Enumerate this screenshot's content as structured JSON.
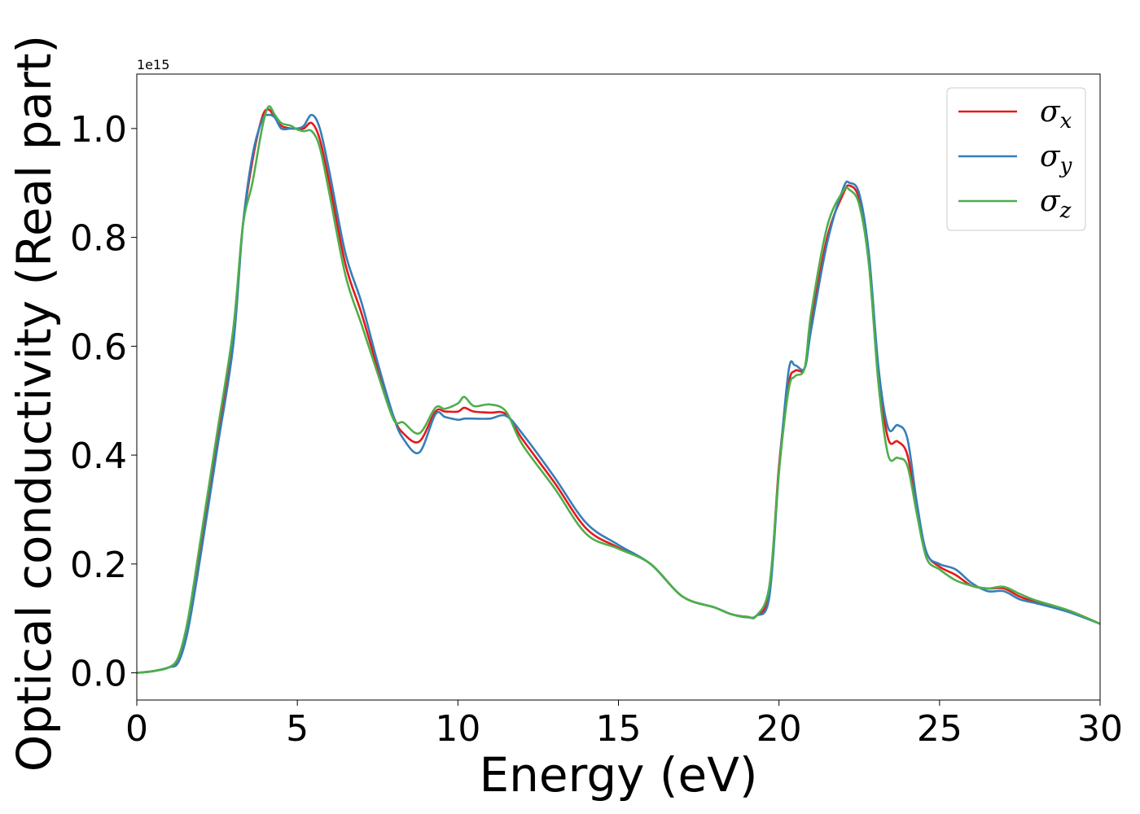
{
  "chart_data": {
    "type": "line",
    "title": "",
    "xlabel": "Energy (eV)",
    "ylabel": "Optical conductivity (Real part)",
    "y_offset_label": "1e15",
    "xlim": [
      0,
      30
    ],
    "ylim": [
      -0.05,
      1.1
    ],
    "x_ticks": [
      0,
      5,
      10,
      15,
      20,
      25,
      30
    ],
    "x_tick_labels": [
      "0",
      "5",
      "10",
      "15",
      "20",
      "25",
      "30"
    ],
    "y_ticks": [
      0.0,
      0.2,
      0.4,
      0.6,
      0.8,
      1.0
    ],
    "y_tick_labels": [
      "0.0",
      "0.2",
      "0.4",
      "0.6",
      "0.8",
      "1.0"
    ],
    "grid": false,
    "legend_position": "top-right",
    "x": [
      0,
      0.5,
      1.0,
      1.3,
      1.6,
      2.0,
      2.5,
      3.0,
      3.3,
      3.6,
      3.9,
      4.1,
      4.3,
      4.5,
      4.8,
      5.0,
      5.2,
      5.45,
      5.7,
      6.0,
      6.5,
      7.0,
      7.5,
      8.0,
      8.3,
      8.8,
      9.3,
      9.6,
      10.0,
      10.2,
      10.5,
      11.0,
      11.5,
      12.0,
      13.0,
      14.0,
      15.0,
      16.0,
      17.0,
      18.0,
      18.5,
      19.0,
      19.3,
      19.7,
      20.0,
      20.3,
      20.5,
      20.8,
      21.0,
      21.5,
      22.0,
      22.2,
      22.5,
      22.8,
      23.1,
      23.4,
      23.7,
      24.0,
      24.3,
      24.6,
      25.0,
      25.5,
      26.0,
      26.5,
      27.0,
      27.5,
      28.0,
      29.0,
      30.0
    ],
    "series": [
      {
        "name": "σx",
        "subscript": "x",
        "color": "#e41a1c",
        "values": [
          0.0,
          0.003,
          0.01,
          0.025,
          0.09,
          0.24,
          0.43,
          0.62,
          0.82,
          0.94,
          1.02,
          1.035,
          1.02,
          1.005,
          1.0,
          1.0,
          1.0,
          1.01,
          0.98,
          0.9,
          0.75,
          0.66,
          0.56,
          0.47,
          0.44,
          0.425,
          0.48,
          0.48,
          0.48,
          0.487,
          0.48,
          0.478,
          0.475,
          0.43,
          0.35,
          0.265,
          0.23,
          0.2,
          0.14,
          0.12,
          0.108,
          0.103,
          0.105,
          0.15,
          0.38,
          0.53,
          0.555,
          0.56,
          0.64,
          0.8,
          0.88,
          0.895,
          0.87,
          0.76,
          0.55,
          0.43,
          0.425,
          0.4,
          0.3,
          0.22,
          0.195,
          0.18,
          0.16,
          0.155,
          0.155,
          0.14,
          0.13,
          0.115,
          0.09
        ]
      },
      {
        "name": "σy",
        "subscript": "y",
        "color": "#377eb8",
        "values": [
          0.0,
          0.003,
          0.01,
          0.02,
          0.08,
          0.22,
          0.41,
          0.6,
          0.82,
          0.95,
          1.015,
          1.025,
          1.02,
          1.0,
          1.0,
          1.0,
          1.005,
          1.025,
          1.0,
          0.92,
          0.77,
          0.68,
          0.57,
          0.47,
          0.43,
          0.405,
          0.475,
          0.47,
          0.465,
          0.467,
          0.467,
          0.467,
          0.472,
          0.44,
          0.36,
          0.275,
          0.235,
          0.2,
          0.14,
          0.12,
          0.108,
          0.102,
          0.105,
          0.14,
          0.37,
          0.555,
          0.565,
          0.56,
          0.63,
          0.79,
          0.89,
          0.9,
          0.88,
          0.77,
          0.56,
          0.45,
          0.455,
          0.43,
          0.31,
          0.22,
          0.2,
          0.19,
          0.165,
          0.15,
          0.15,
          0.135,
          0.128,
          0.112,
          0.09
        ]
      },
      {
        "name": "σz",
        "subscript": "z",
        "color": "#4daf4a",
        "values": [
          0.0,
          0.003,
          0.01,
          0.03,
          0.1,
          0.25,
          0.44,
          0.63,
          0.82,
          0.9,
          1.0,
          1.04,
          1.025,
          1.01,
          1.005,
          0.998,
          0.995,
          0.995,
          0.965,
          0.88,
          0.73,
          0.64,
          0.55,
          0.465,
          0.46,
          0.44,
          0.487,
          0.485,
          0.495,
          0.507,
          0.49,
          0.493,
          0.48,
          0.42,
          0.34,
          0.255,
          0.228,
          0.2,
          0.14,
          0.12,
          0.108,
          0.103,
          0.105,
          0.16,
          0.37,
          0.52,
          0.545,
          0.56,
          0.66,
          0.82,
          0.885,
          0.887,
          0.86,
          0.75,
          0.53,
          0.4,
          0.395,
          0.38,
          0.29,
          0.21,
          0.19,
          0.17,
          0.16,
          0.155,
          0.158,
          0.145,
          0.133,
          0.115,
          0.09
        ]
      }
    ]
  }
}
